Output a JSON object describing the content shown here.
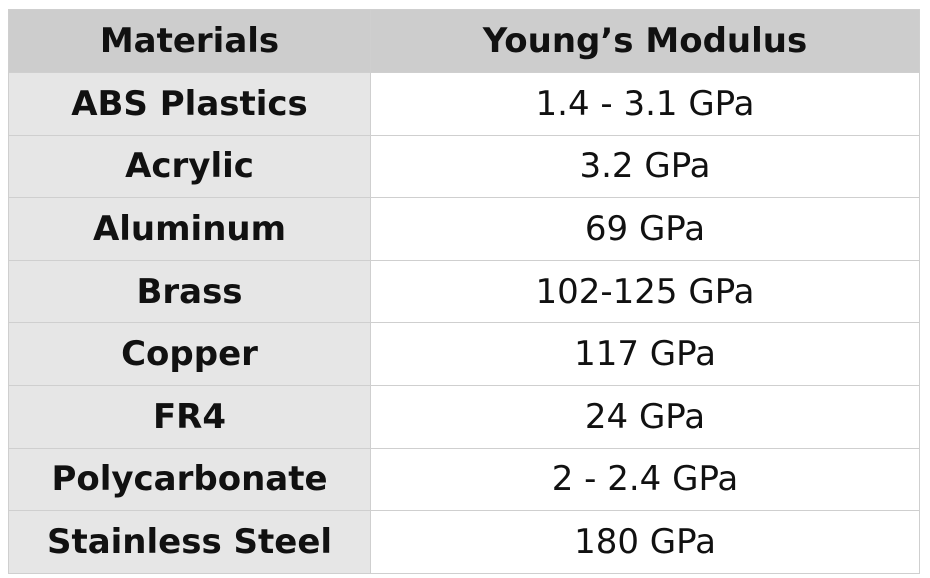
{
  "table": {
    "headers": {
      "materials": "Materials",
      "modulus": "Young’s Modulus"
    },
    "rows": [
      {
        "material": "ABS Plastics",
        "modulus": "1.4 - 3.1 GPa"
      },
      {
        "material": "Acrylic",
        "modulus": "3.2 GPa"
      },
      {
        "material": "Aluminum",
        "modulus": "69 GPa"
      },
      {
        "material": "Brass",
        "modulus": "102-125 GPa"
      },
      {
        "material": "Copper",
        "modulus": "117 GPa"
      },
      {
        "material": "FR4",
        "modulus": "24 GPa"
      },
      {
        "material": "Polycarbonate",
        "modulus": "2 - 2.4 GPa"
      },
      {
        "material": "Stainless Steel",
        "modulus": "180 GPa"
      }
    ]
  },
  "colors": {
    "header_background": "#cdcdcd",
    "material_cell_background": "#e6e6e6",
    "value_cell_background": "#ffffff",
    "grid_line": "#cfcfcf",
    "text": "#111111"
  }
}
